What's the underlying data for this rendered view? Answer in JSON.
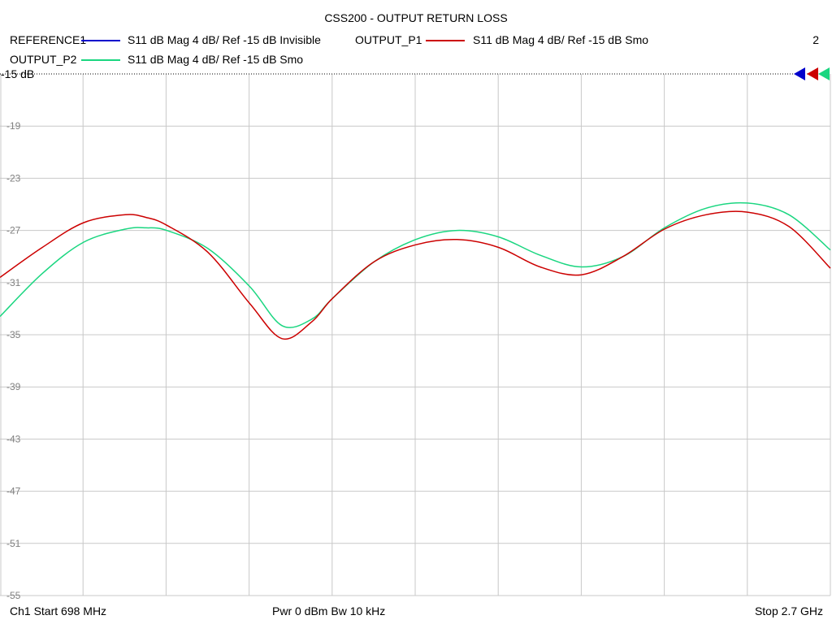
{
  "chart_data": {
    "type": "line",
    "title": "CSS200 - OUTPUT RETURN LOSS",
    "x_start": 698,
    "x_stop": 2700,
    "x_unit": "MHz",
    "ylim": [
      -55,
      -15
    ],
    "yticks": [
      -19,
      -23,
      -27,
      -31,
      -35,
      -39,
      -43,
      -47,
      -51,
      -55
    ],
    "ref_label": "-15 dB",
    "grid": true,
    "legend": [
      {
        "name": "REFERENCE1",
        "desc": "S11  dB Mag  4 dB/ Ref -15 dB  Invisible",
        "color": "#0000cc"
      },
      {
        "name": "OUTPUT_P1",
        "desc": "S11  dB Mag  4 dB/ Ref -15 dB  Smo",
        "color": "#cc0000"
      },
      {
        "name": "OUTPUT_P2",
        "desc": "S11  dB Mag  4 dB/ Ref -15 dB  Smo",
        "color": "#1ad680"
      }
    ],
    "series": [
      {
        "name": "OUTPUT_P1",
        "color": "#cc0000",
        "x": [
          698,
          800,
          900,
          1000,
          1050,
          1100,
          1200,
          1300,
          1378,
          1450,
          1500,
          1600,
          1700,
          1800,
          1900,
          2000,
          2100,
          2200,
          2300,
          2400,
          2500,
          2600,
          2700
        ],
        "y": [
          -30.6,
          -28.3,
          -26.4,
          -25.8,
          -26.0,
          -26.6,
          -28.7,
          -32.6,
          -35.3,
          -34.0,
          -32.2,
          -29.4,
          -28.1,
          -27.7,
          -28.3,
          -29.8,
          -30.4,
          -29.0,
          -26.9,
          -25.8,
          -25.6,
          -26.7,
          -29.9
        ]
      },
      {
        "name": "OUTPUT_P2",
        "color": "#1ad680",
        "x": [
          698,
          800,
          900,
          1000,
          1050,
          1100,
          1200,
          1300,
          1378,
          1450,
          1500,
          1600,
          1700,
          1800,
          1900,
          2000,
          2100,
          2200,
          2300,
          2400,
          2500,
          2600,
          2700
        ],
        "y": [
          -33.6,
          -30.3,
          -27.9,
          -26.9,
          -26.8,
          -27.0,
          -28.4,
          -31.3,
          -34.3,
          -33.8,
          -32.2,
          -29.4,
          -27.7,
          -27.0,
          -27.5,
          -28.9,
          -29.8,
          -29.0,
          -26.8,
          -25.3,
          -24.9,
          -25.8,
          -28.5
        ]
      }
    ]
  },
  "footer": {
    "start": "Ch1  Start  698 MHz",
    "center": "Pwr  0 dBm  Bw  10 kHz",
    "stop": "Stop  2.7 GHz"
  },
  "legend_index": "2"
}
